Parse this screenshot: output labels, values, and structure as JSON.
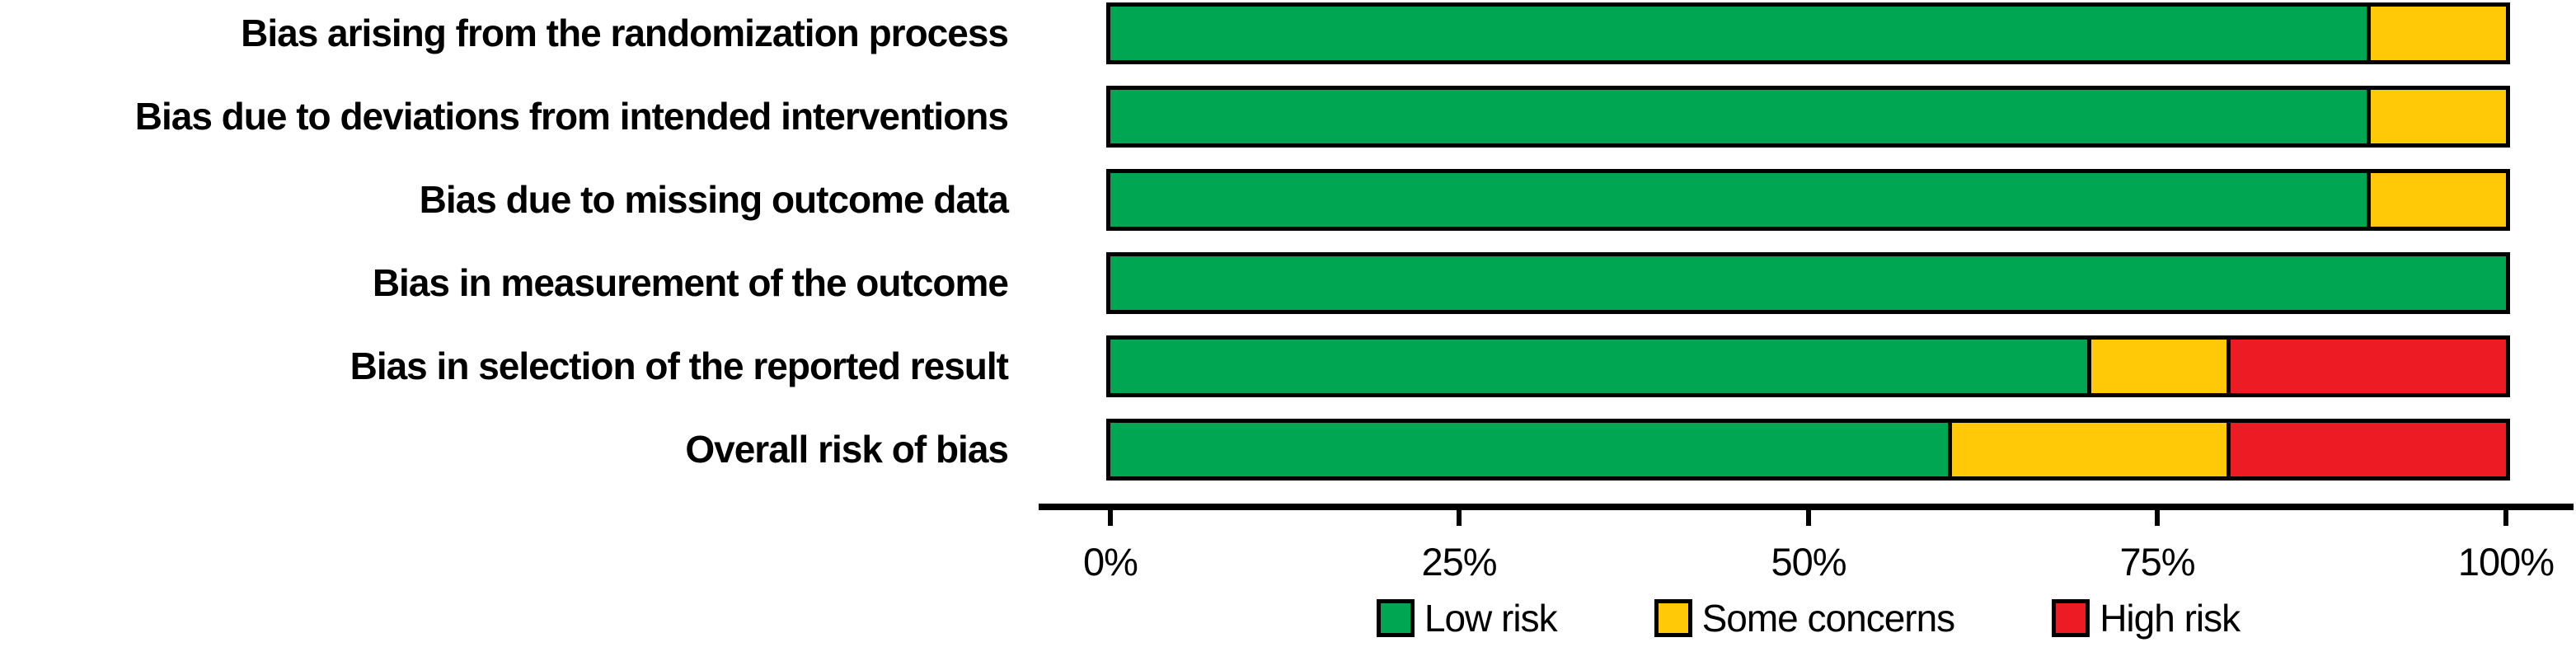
{
  "figure": {
    "background": "#FFFFFF",
    "bar_border_color": "#000000",
    "axis_color": "#000000"
  },
  "chart_data": {
    "type": "bar",
    "orientation": "horizontal_stacked",
    "title": "",
    "xlabel": "",
    "ylabel": "",
    "grid": false,
    "categories": [
      "Bias arising from the randomization process",
      "Bias due to deviations from intended interventions",
      "Bias due to missing outcome data",
      "Bias in measurement of the outcome",
      "Bias in selection of the reported result",
      "Overall risk of bias"
    ],
    "series": [
      {
        "name": "Low risk",
        "color": "#00A651",
        "values": [
          90,
          90,
          90,
          100,
          70,
          60
        ]
      },
      {
        "name": "Some concerns",
        "color": "#FFC907",
        "values": [
          10,
          10,
          10,
          0,
          10,
          20
        ]
      },
      {
        "name": "High risk",
        "color": "#ED1C24",
        "values": [
          0,
          0,
          0,
          0,
          20,
          20
        ]
      }
    ],
    "x_axis": {
      "min": 0,
      "max": 100,
      "unit": "%",
      "tick_values": [
        0,
        25,
        50,
        75,
        100
      ],
      "tick_labels": [
        "0%",
        "25%",
        "50%",
        "75%",
        "100%"
      ]
    },
    "legend": {
      "position": "bottom",
      "entries": [
        "Low risk",
        "Some concerns",
        "High risk"
      ]
    }
  }
}
